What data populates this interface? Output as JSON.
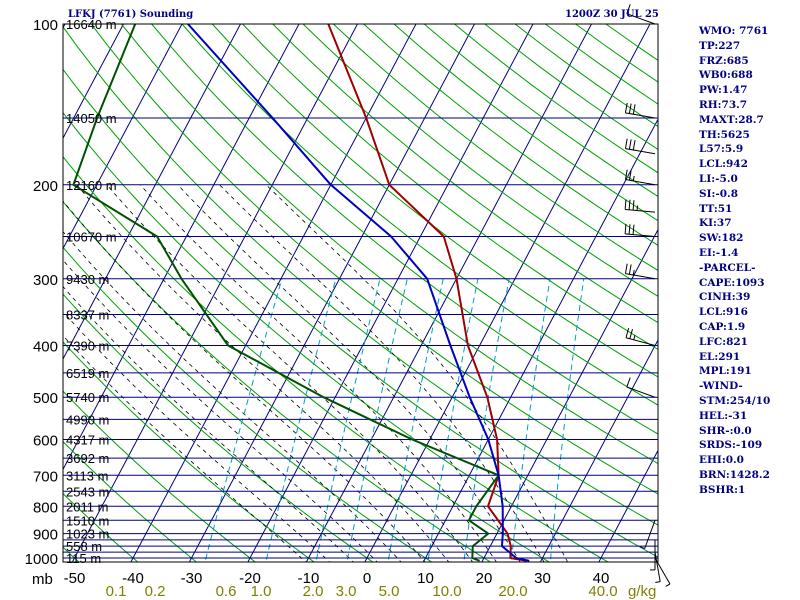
{
  "header": {
    "station": "LFKJ (7761) Sounding",
    "time": "1200Z 30 JUL 25"
  },
  "indices": [
    "WMO: 7761",
    "TP:227",
    "FRZ:685",
    "WB0:688",
    "PW:1.47",
    "RH:73.7",
    "MAXT:28.7",
    "TH:5625",
    "L57:5.9",
    "LCL:942",
    "LI:-5.0",
    "SI:-0.8",
    "TT:51",
    "KI:37",
    "SW:182",
    "EI:-1.4",
    "-PARCEL-",
    "CAPE:1093",
    "CINH:39",
    "LCL:916",
    "CAP:1.9",
    "LFC:821",
    "EL:291",
    "MPL:191",
    "-WIND-",
    "STM:254/10",
    "HEL:-31",
    "SHR-:0.0",
    "SRDS:-109",
    "EHI:0.0",
    "BRN:1428.2",
    "BSHR:1"
  ],
  "colors": {
    "background": "#ffffff",
    "frame": "#000000",
    "isobar": "#000080",
    "isotherm": "#000080",
    "dry_adiabat": "#00a000",
    "moist_adiabat": "#000000",
    "mixing_ratio": "#00a0c0",
    "temperature": "#a00000",
    "dewpoint": "#005000",
    "parcel": "#0000c0",
    "text_blue": "#000080",
    "axis_text": "#000000",
    "mixing_text": "#808000"
  },
  "chart_data": {
    "type": "skew-t log-p sounding",
    "title": "LFKJ (7761) Sounding",
    "xlabel": "",
    "ylabel": "mb",
    "pressure_ticks": [
      100,
      200,
      300,
      400,
      500,
      600,
      700,
      800,
      900,
      1000
    ],
    "temperature_ticks": [
      -50,
      -40,
      -30,
      -20,
      -10,
      0,
      10,
      20,
      30,
      40
    ],
    "mixing_ratio_ticks": [
      "0.1",
      "0.2",
      "0.6",
      "1.0",
      "2.0",
      "3.0",
      "5.0",
      "10.0",
      "20.0",
      "40.0"
    ],
    "mixing_ratio_unit": "g/kg",
    "height_labels": [
      {
        "p": 100,
        "label": "16640 m"
      },
      {
        "p": 150,
        "label": "14050 m"
      },
      {
        "p": 200,
        "label": "12160 m"
      },
      {
        "p": 250,
        "label": "10670 m"
      },
      {
        "p": 300,
        "label": "9430 m"
      },
      {
        "p": 350,
        "label": "8337 m"
      },
      {
        "p": 400,
        "label": "7390 m"
      },
      {
        "p": 450,
        "label": "6519 m"
      },
      {
        "p": 500,
        "label": "5740 m"
      },
      {
        "p": 550,
        "label": "4990 m"
      },
      {
        "p": 600,
        "label": "4317 m"
      },
      {
        "p": 650,
        "label": "3692 m"
      },
      {
        "p": 700,
        "label": "3113 m"
      },
      {
        "p": 750,
        "label": "2543 m"
      },
      {
        "p": 800,
        "label": "2011 m"
      },
      {
        "p": 850,
        "label": "1510 m"
      },
      {
        "p": 900,
        "label": "1023 m"
      },
      {
        "p": 950,
        "label": "558 m"
      },
      {
        "p": 1000,
        "label": "115 m"
      }
    ],
    "isobars": [
      100,
      150,
      200,
      250,
      300,
      350,
      400,
      450,
      500,
      550,
      600,
      650,
      700,
      750,
      800,
      850,
      900,
      925,
      950,
      975,
      1000
    ],
    "temperature_profile": [
      {
        "p": 1012,
        "t": 27.5
      },
      {
        "p": 1000,
        "t": 24.5
      },
      {
        "p": 950,
        "t": 23.5
      },
      {
        "p": 900,
        "t": 21.8
      },
      {
        "p": 850,
        "t": 19.0
      },
      {
        "p": 800,
        "t": 16.0
      },
      {
        "p": 700,
        "t": 15.0
      },
      {
        "p": 600,
        "t": 11.5
      },
      {
        "p": 500,
        "t": 6.0
      },
      {
        "p": 400,
        "t": -2.0
      },
      {
        "p": 300,
        "t": -10.0
      },
      {
        "p": 250,
        "t": -16.0
      },
      {
        "p": 200,
        "t": -30.0
      },
      {
        "p": 150,
        "t": -40.0
      },
      {
        "p": 100,
        "t": -55.0
      }
    ],
    "dewpoint_profile": [
      {
        "p": 1012,
        "t": 19.5
      },
      {
        "p": 1000,
        "t": 18.0
      },
      {
        "p": 950,
        "t": 17.0
      },
      {
        "p": 900,
        "t": 18.5
      },
      {
        "p": 850,
        "t": 14.0
      },
      {
        "p": 800,
        "t": 14.0
      },
      {
        "p": 700,
        "t": 15.0
      },
      {
        "p": 600,
        "t": -3.0
      },
      {
        "p": 500,
        "t": -22.0
      },
      {
        "p": 400,
        "t": -43.0
      },
      {
        "p": 300,
        "t": -57.0
      },
      {
        "p": 250,
        "t": -65.0
      },
      {
        "p": 200,
        "t": -84.0
      },
      {
        "p": 150,
        "t": -86.0
      },
      {
        "p": 100,
        "t": -88.0
      }
    ],
    "parcel_profile": [
      {
        "p": 1012,
        "t": 28.0
      },
      {
        "p": 1000,
        "t": 25.5
      },
      {
        "p": 950,
        "t": 22.0
      },
      {
        "p": 900,
        "t": 21.0
      },
      {
        "p": 800,
        "t": 18.5
      },
      {
        "p": 700,
        "t": 15.0
      },
      {
        "p": 600,
        "t": 10.0
      },
      {
        "p": 500,
        "t": 3.0
      },
      {
        "p": 400,
        "t": -5.0
      },
      {
        "p": 300,
        "t": -15.0
      },
      {
        "p": 250,
        "t": -25.0
      },
      {
        "p": 200,
        "t": -40.0
      },
      {
        "p": 150,
        "t": -56.0
      },
      {
        "p": 100,
        "t": -79.0
      }
    ],
    "wind_barbs": [
      {
        "p": 100,
        "dir": 290,
        "spd": 10
      },
      {
        "p": 150,
        "dir": 280,
        "spd": 30
      },
      {
        "p": 175,
        "dir": 280,
        "spd": 30
      },
      {
        "p": 200,
        "dir": 280,
        "spd": 25
      },
      {
        "p": 225,
        "dir": 275,
        "spd": 35
      },
      {
        "p": 250,
        "dir": 275,
        "spd": 30
      },
      {
        "p": 300,
        "dir": 280,
        "spd": 25
      },
      {
        "p": 400,
        "dir": 285,
        "spd": 25
      },
      {
        "p": 500,
        "dir": 290,
        "spd": 10
      },
      {
        "p": 850,
        "dir": 200,
        "spd": 5
      },
      {
        "p": 925,
        "dir": 180,
        "spd": 5
      },
      {
        "p": 975,
        "dir": 170,
        "spd": 5
      },
      {
        "p": 1000,
        "dir": 150,
        "spd": 5
      }
    ],
    "grid": true,
    "legend": "none"
  }
}
